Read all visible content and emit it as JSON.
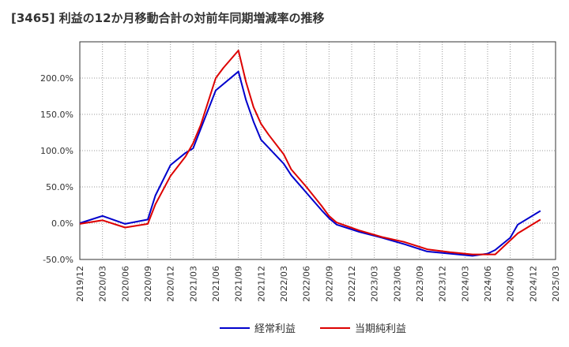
{
  "chart_data": {
    "type": "line",
    "title": "[3465]  利益の12か月移動合計の対前年同期増減率の推移",
    "xlabel": "",
    "ylabel": "",
    "ylim": [
      -50,
      250
    ],
    "y_ticks": [
      -50,
      0,
      50,
      100,
      150,
      200
    ],
    "y_tick_labels": [
      "-50.0%",
      "0.0%",
      "50.0%",
      "100.0%",
      "150.0%",
      "200.0%"
    ],
    "x_tick_labels": [
      "2019/12",
      "2020/03",
      "2020/06",
      "2020/09",
      "2020/12",
      "2021/03",
      "2021/06",
      "2021/09",
      "2021/12",
      "2022/03",
      "2022/06",
      "2022/09",
      "2022/12",
      "2023/03",
      "2023/06",
      "2023/09",
      "2023/12",
      "2024/03",
      "2024/06",
      "2024/09",
      "2024/12",
      "2025/03"
    ],
    "grid": true,
    "legend_position": "bottom",
    "series": [
      {
        "name": "経常利益",
        "color": "#0000cc",
        "points": [
          [
            0,
            0
          ],
          [
            3,
            10
          ],
          [
            6,
            -1
          ],
          [
            9,
            5
          ],
          [
            10,
            38
          ],
          [
            12,
            80
          ],
          [
            14,
            97
          ],
          [
            15,
            103
          ],
          [
            18,
            183
          ],
          [
            21,
            209
          ],
          [
            22,
            170
          ],
          [
            23,
            140
          ],
          [
            24,
            115
          ],
          [
            25,
            104
          ],
          [
            27,
            82
          ],
          [
            28,
            66
          ],
          [
            30,
            42
          ],
          [
            32,
            18
          ],
          [
            33,
            7
          ],
          [
            34,
            -2
          ],
          [
            37,
            -12
          ],
          [
            40,
            -20
          ],
          [
            43,
            -29
          ],
          [
            46,
            -39
          ],
          [
            49,
            -42
          ],
          [
            52,
            -45
          ],
          [
            54,
            -42
          ],
          [
            55,
            -37
          ],
          [
            57,
            -20
          ],
          [
            58,
            -2
          ],
          [
            61,
            17
          ]
        ]
      },
      {
        "name": "当期純利益",
        "color": "#dd0000",
        "points": [
          [
            0,
            -1
          ],
          [
            3,
            4
          ],
          [
            6,
            -6
          ],
          [
            9,
            -1
          ],
          [
            10,
            26
          ],
          [
            12,
            65
          ],
          [
            14,
            92
          ],
          [
            15,
            110
          ],
          [
            16,
            135
          ],
          [
            18,
            200
          ],
          [
            19,
            214
          ],
          [
            21,
            238
          ],
          [
            22,
            195
          ],
          [
            23,
            160
          ],
          [
            24,
            137
          ],
          [
            25,
            122
          ],
          [
            27,
            95
          ],
          [
            28,
            74
          ],
          [
            30,
            50
          ],
          [
            32,
            24
          ],
          [
            33,
            10
          ],
          [
            34,
            1
          ],
          [
            37,
            -10
          ],
          [
            40,
            -19
          ],
          [
            43,
            -26
          ],
          [
            46,
            -36
          ],
          [
            49,
            -40
          ],
          [
            52,
            -43
          ],
          [
            55,
            -43
          ],
          [
            58,
            -14
          ],
          [
            61,
            5
          ]
        ]
      }
    ]
  }
}
